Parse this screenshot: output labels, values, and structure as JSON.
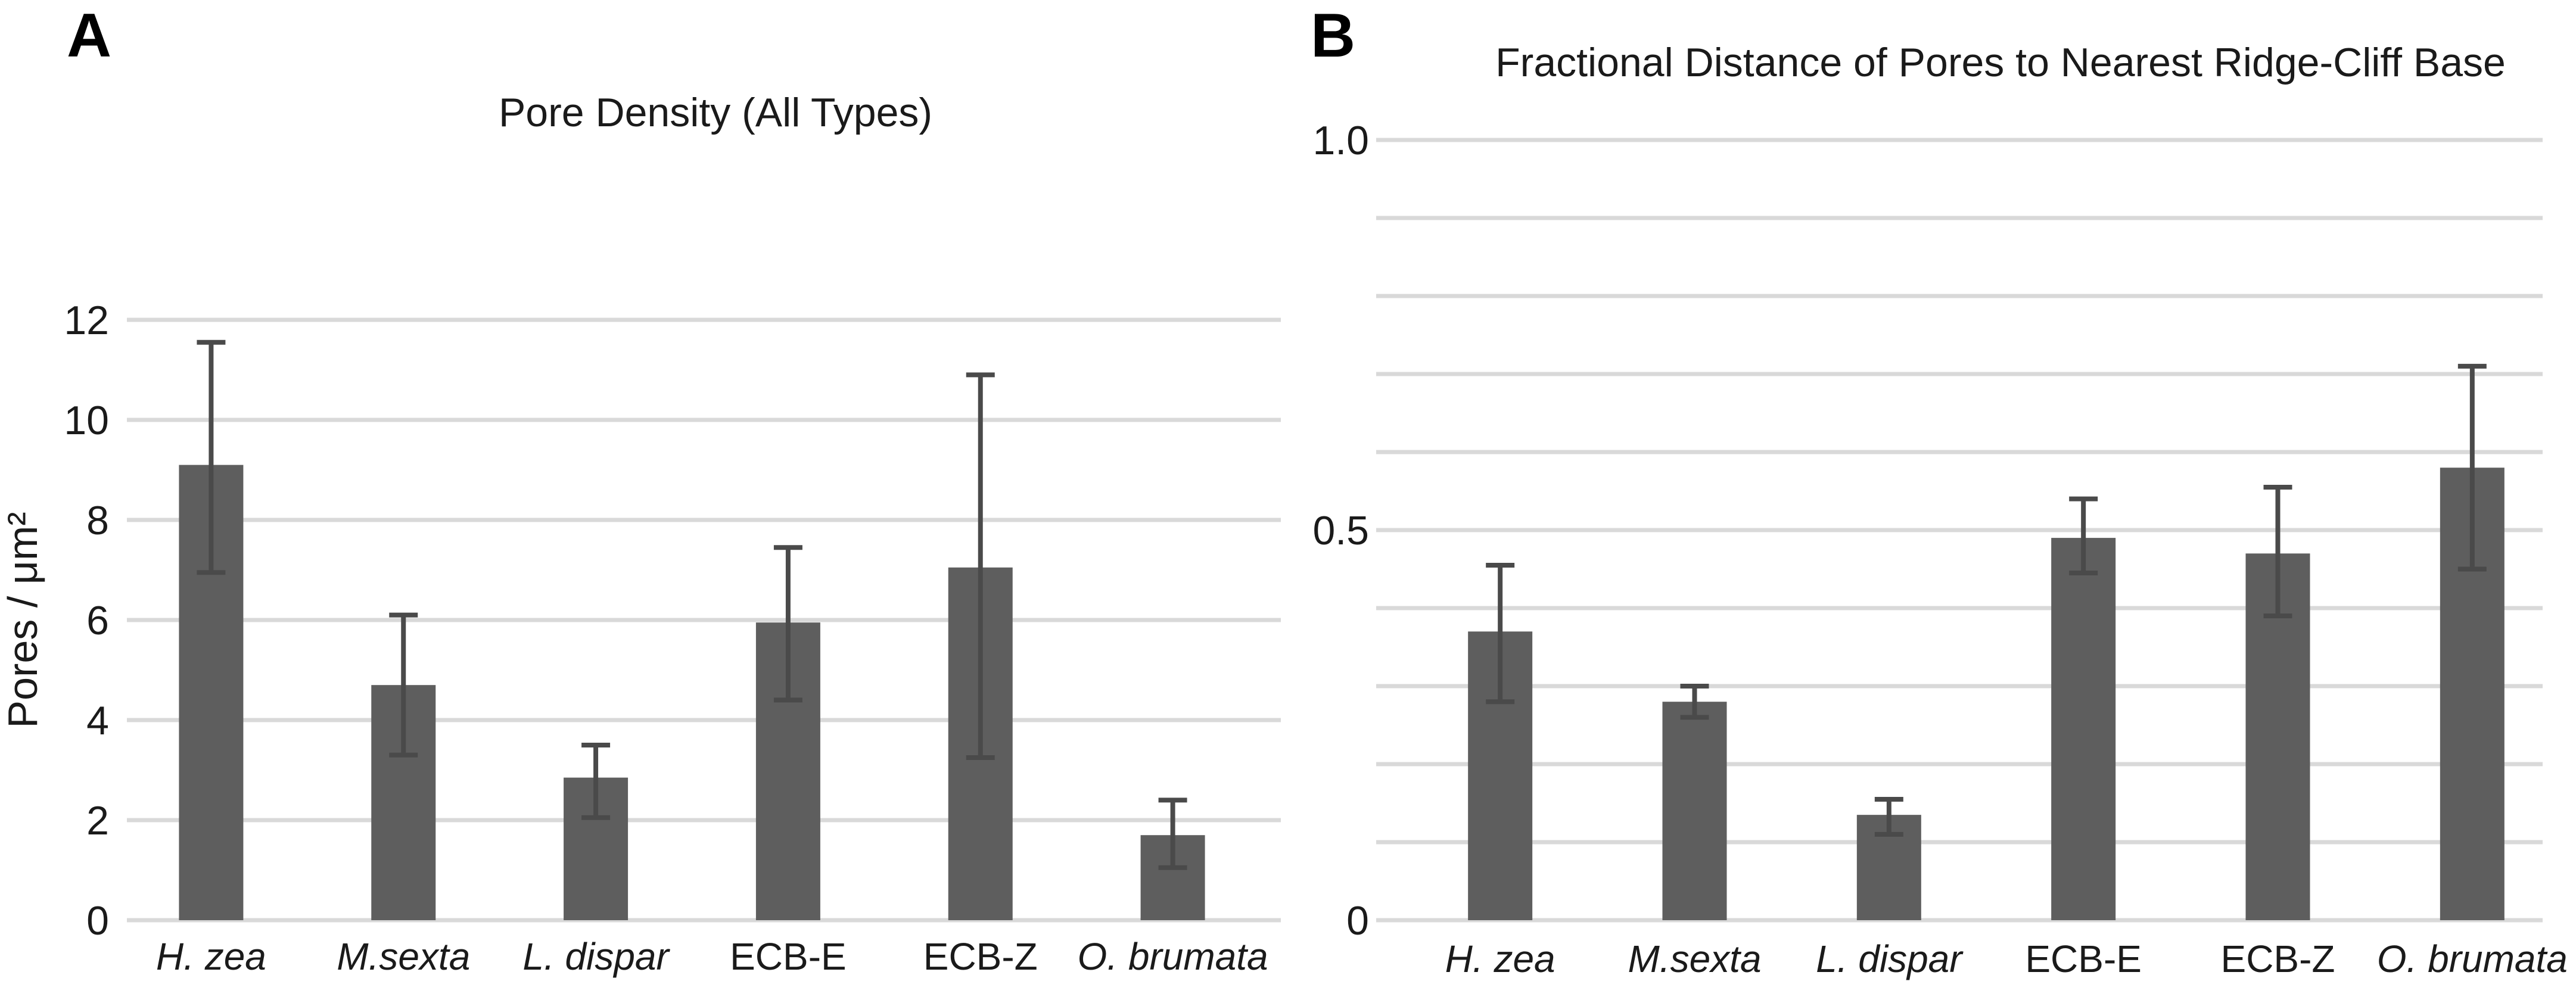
{
  "figure": {
    "background_color": "#ffffff",
    "bar_color": "#5e5e5e",
    "error_bar_color": "#4a4a4a",
    "gridline_color": "#d9d9d9",
    "text_color": "#1a1a1a"
  },
  "panels": [
    {
      "letter": "A"
    },
    {
      "letter": "B"
    }
  ],
  "chart_data": [
    {
      "type": "bar",
      "panel": "A",
      "title": "Pore Density (All Types)",
      "xlabel": "",
      "ylabel": "Pores / μm²",
      "categories": [
        "H. zea",
        "M.sexta",
        "L. dispar",
        "ECB-E",
        "ECB-Z",
        "O. brumata"
      ],
      "categories_italic": [
        true,
        true,
        true,
        false,
        false,
        true
      ],
      "values": [
        9.1,
        4.7,
        2.85,
        5.95,
        7.05,
        1.7
      ],
      "error_low": [
        6.95,
        3.3,
        2.05,
        4.4,
        3.25,
        1.05
      ],
      "error_high": [
        11.55,
        6.1,
        3.5,
        7.45,
        10.9,
        2.4
      ],
      "ylim": [
        0,
        12
      ],
      "gridline_interval": 2,
      "yticks": [
        {
          "value": 0,
          "label": "0"
        },
        {
          "value": 2,
          "label": "2"
        },
        {
          "value": 4,
          "label": "4"
        },
        {
          "value": 6,
          "label": "6"
        },
        {
          "value": 8,
          "label": "8"
        },
        {
          "value": 10,
          "label": "10"
        },
        {
          "value": 12,
          "label": "12"
        }
      ],
      "grid": true,
      "legend": "none",
      "error_bars": true
    },
    {
      "type": "bar",
      "panel": "B",
      "title": "Fractional Distance of Pores to Nearest Ridge-Cliff Base",
      "xlabel": "",
      "ylabel": "",
      "categories": [
        "H. zea",
        "M.sexta",
        "L. dispar",
        "ECB-E",
        "ECB-Z",
        "O. brumata"
      ],
      "categories_italic": [
        true,
        true,
        true,
        false,
        false,
        true
      ],
      "values": [
        0.37,
        0.28,
        0.135,
        0.49,
        0.47,
        0.58
      ],
      "error_low": [
        0.28,
        0.26,
        0.11,
        0.445,
        0.39,
        0.45
      ],
      "error_high": [
        0.455,
        0.3,
        0.155,
        0.54,
        0.555,
        0.71
      ],
      "ylim": [
        0,
        1.0
      ],
      "gridline_interval": 0.1,
      "yticks": [
        {
          "value": 0,
          "label": "0"
        },
        {
          "value": 0.5,
          "label": "0.5"
        },
        {
          "value": 1.0,
          "label": "1.0"
        }
      ],
      "grid": true,
      "legend": "none",
      "error_bars": true
    }
  ]
}
